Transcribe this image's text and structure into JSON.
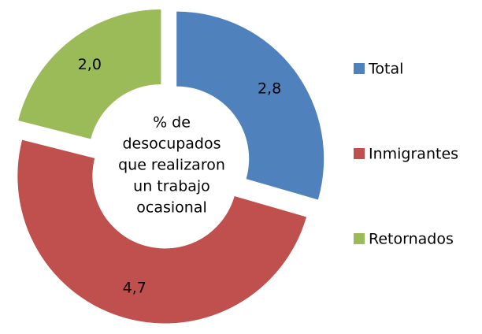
{
  "chart_data": {
    "type": "donut",
    "center_text": [
      "% de",
      "desocupados",
      "que realizaron",
      "un trabajo",
      "ocasional"
    ],
    "categories": [
      "Total",
      "Inmigrantes",
      "Retornados"
    ],
    "values": [
      2.8,
      4.7,
      2.0
    ],
    "value_labels": [
      "2,8",
      "4,7",
      "2,0"
    ],
    "colors": [
      "#4f81bd",
      "#c0504d",
      "#9bbb59"
    ],
    "legend": "right"
  }
}
